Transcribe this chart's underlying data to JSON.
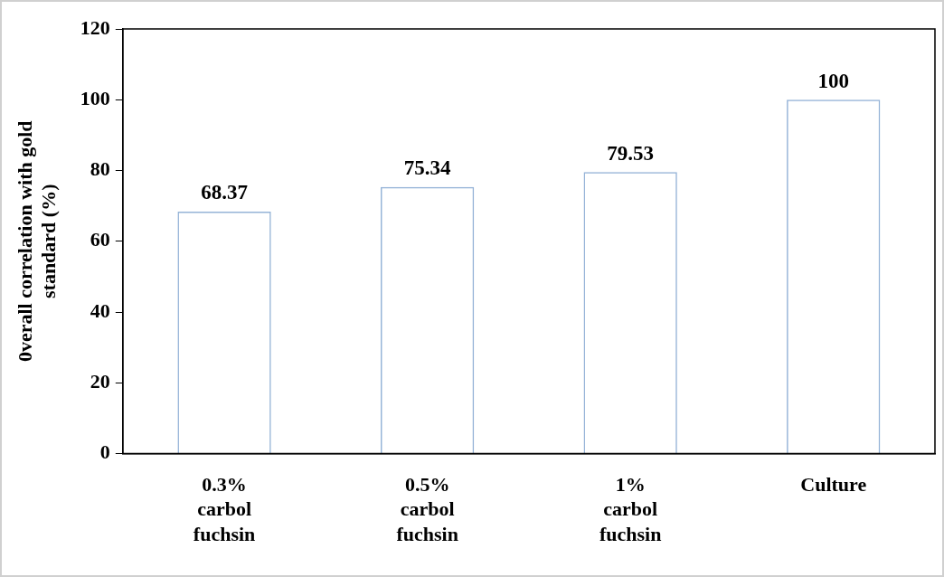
{
  "chart_data": {
    "type": "bar",
    "ylabel": "0verall correlation with gold standard (%)",
    "categories": [
      "0.3% carbol fuchsin",
      "0.5% carbol fuchsin",
      "1% carbol fuchsin",
      "Culture"
    ],
    "values": [
      68.37,
      75.34,
      79.53,
      100
    ],
    "color": "#95b3d7",
    "ylim": [
      0,
      120
    ],
    "yticks": [
      0,
      20,
      40,
      60,
      80,
      100,
      120
    ],
    "grid": false,
    "legend": false,
    "data_labels": true
  }
}
